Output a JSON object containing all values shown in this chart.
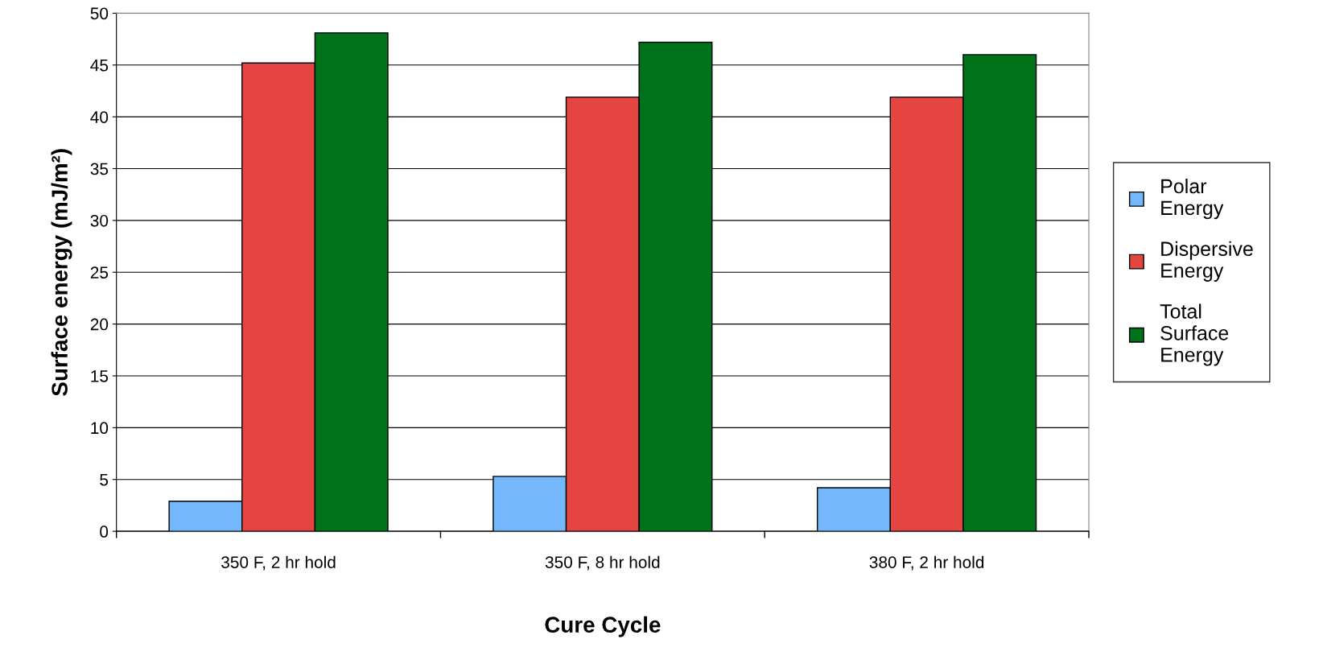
{
  "chart_data": {
    "type": "bar",
    "xlabel": "Cure Cycle",
    "ylabel": "Surface energy (mJ/m²)",
    "categories": [
      "350 F, 2 hr hold",
      "350 F, 8 hr hold",
      "380 F, 2 hr hold"
    ],
    "series": [
      {
        "name": "Polar\nEnergy",
        "color": "#74b8fb",
        "values": [
          2.9,
          5.3,
          4.2
        ]
      },
      {
        "name": "Dispersive\nEnergy",
        "color": "#e54541",
        "values": [
          45.2,
          41.9,
          41.9
        ]
      },
      {
        "name": "Total\nSurface\nEnergy",
        "color": "#00721a",
        "values": [
          48.1,
          47.2,
          46.0
        ]
      }
    ],
    "ylim": [
      0,
      50
    ],
    "yticks": [
      0,
      5,
      10,
      15,
      20,
      25,
      30,
      35,
      40,
      45,
      50
    ],
    "grid": "y",
    "legend": "right"
  }
}
